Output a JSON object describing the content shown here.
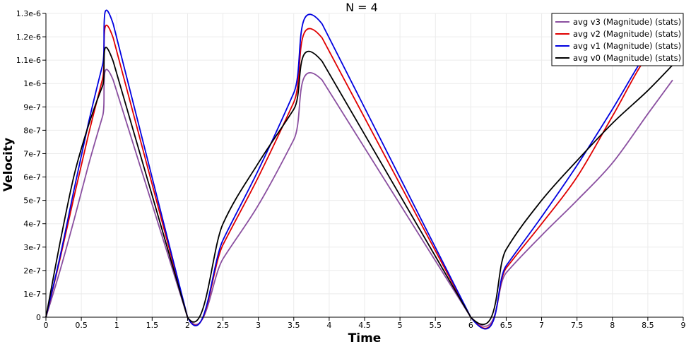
{
  "chart_data": {
    "type": "line",
    "title": "N = 4",
    "xlabel": "Time",
    "ylabel": "Velocity",
    "xlim": [
      0,
      9
    ],
    "ylim": [
      0,
      1.3e-06
    ],
    "grid": true,
    "legend_position": "top-right",
    "x_ticks": [
      "0",
      "0.5",
      "1",
      "1.5",
      "2",
      "2.5",
      "3",
      "3.5",
      "4",
      "4.5",
      "5",
      "5.5",
      "6",
      "6.5",
      "7",
      "7.5",
      "8",
      "8.5",
      "9"
    ],
    "x_tick_values": [
      0,
      0.5,
      1,
      1.5,
      2,
      2.5,
      3,
      3.5,
      4,
      4.5,
      5,
      5.5,
      6,
      6.5,
      7,
      7.5,
      8,
      8.5,
      9
    ],
    "y_ticks": [
      "0",
      "1e-7",
      "2e-7",
      "3e-7",
      "4e-7",
      "5e-7",
      "6e-7",
      "7e-7",
      "8e-7",
      "9e-7",
      "1e-6",
      "1.1e-6",
      "1.2e-6",
      "1.3e-6"
    ],
    "y_tick_values": [
      0,
      1e-07,
      2e-07,
      3e-07,
      4e-07,
      5e-07,
      6e-07,
      7e-07,
      8e-07,
      9e-07,
      1e-06,
      1.1e-06,
      1.2e-06,
      1.3e-06
    ],
    "series": [
      {
        "name": "avg v3 (Magnitude) (stats)",
        "color": "#8a4fa0",
        "x": [
          0,
          0.2,
          0.4,
          0.6,
          0.8,
          0.95,
          2,
          2.5,
          3,
          3.5,
          3.9,
          6,
          6.5,
          7,
          7.5,
          8,
          8.5,
          8.85
        ],
        "y": [
          0,
          2e-07,
          4.2e-07,
          6.5e-07,
          8.6e-07,
          1.015e-06,
          0,
          2.5e-07,
          4.8e-07,
          7.6e-07,
          1.015e-06,
          0,
          1.9e-07,
          3.5e-07,
          5e-07,
          6.6e-07,
          8.7e-07,
          1.015e-06
        ]
      },
      {
        "name": "avg v2 (Magnitude) (stats)",
        "color": "#e00000",
        "x": [
          0,
          0.2,
          0.4,
          0.6,
          0.8,
          0.95,
          2,
          2.5,
          3,
          3.5,
          3.9,
          6,
          6.5,
          7,
          7.5,
          8,
          8.5,
          8.9
        ],
        "y": [
          0,
          2.5e-07,
          5.2e-07,
          7.8e-07,
          1.02e-06,
          1.195e-06,
          0,
          3.1e-07,
          6e-07,
          9.2e-07,
          1.195e-06,
          0,
          2.1e-07,
          4e-07,
          6e-07,
          8.6e-07,
          1.12e-06,
          1.195e-06
        ]
      },
      {
        "name": "avg v1 (Magnitude) (stats)",
        "color": "#0000e0",
        "x": [
          0,
          0.2,
          0.4,
          0.6,
          0.8,
          0.95,
          2,
          2.5,
          3,
          3.5,
          3.9,
          6,
          6.5,
          7,
          7.5,
          8,
          8.5,
          8.85
        ],
        "y": [
          0,
          2.6e-07,
          5.5e-07,
          8.3e-07,
          1.08e-06,
          1.255e-06,
          0,
          3.3e-07,
          6.3e-07,
          9.6e-07,
          1.255e-06,
          0,
          2.2e-07,
          4.3e-07,
          6.5e-07,
          8.9e-07,
          1.14e-06,
          1.255e-06
        ]
      },
      {
        "name": "avg v0 (Magnitude) (stats)",
        "color": "#000000",
        "x": [
          0,
          0.2,
          0.4,
          0.6,
          0.8,
          0.95,
          2,
          2.5,
          3,
          3.5,
          3.9,
          6,
          6.5,
          7,
          7.5,
          8,
          8.5,
          8.9
        ],
        "y": [
          0,
          3.2e-07,
          6.1e-07,
          8.2e-07,
          9.9e-07,
          1.095e-06,
          0,
          4e-07,
          6.6e-07,
          8.9e-07,
          1.095e-06,
          0,
          2.9e-07,
          5e-07,
          6.7e-07,
          8.3e-07,
          9.7e-07,
          1.095e-06
        ]
      }
    ]
  }
}
